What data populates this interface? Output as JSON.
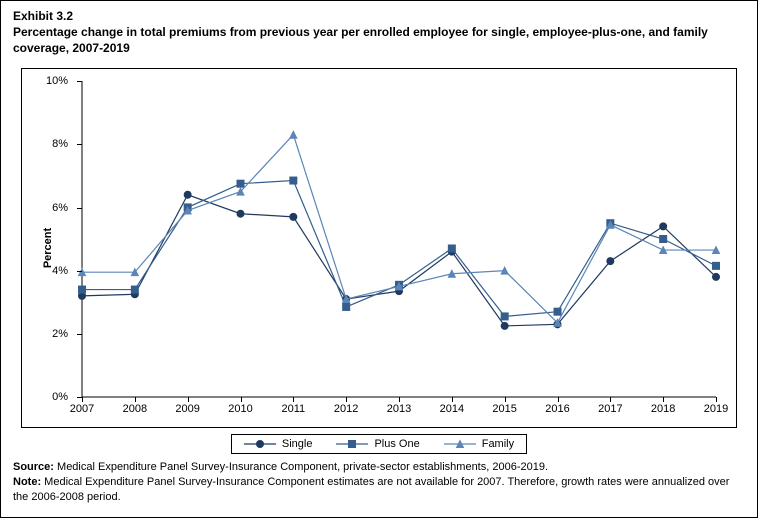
{
  "header": {
    "exhibit": "Exhibit 3.2",
    "title": "Percentage change in total premiums from previous year per enrolled employee for single, employee-plus-one, and family coverage, 2007-2019"
  },
  "chart": {
    "type": "line",
    "ylabel": "Percent",
    "ylim": [
      0,
      10
    ],
    "ytick_step": 2,
    "ytick_suffix": "%",
    "background_color": "#ffffff",
    "axis_color": "#000000",
    "years": [
      2007,
      2008,
      2009,
      2010,
      2011,
      2012,
      2013,
      2014,
      2015,
      2016,
      2017,
      2018,
      2019
    ],
    "series": [
      {
        "name": "Single",
        "color": "#1f3a5f",
        "marker": "circle",
        "line_width": 1.2,
        "values": [
          3.2,
          3.25,
          6.4,
          5.8,
          5.7,
          3.1,
          3.35,
          4.6,
          2.25,
          2.3,
          4.3,
          5.4,
          3.8
        ]
      },
      {
        "name": "Plus One",
        "color": "#355e8c",
        "marker": "square",
        "line_width": 1.2,
        "values": [
          3.4,
          3.4,
          6.0,
          6.75,
          6.85,
          2.85,
          3.55,
          4.7,
          2.55,
          2.7,
          5.5,
          5.0,
          4.15
        ]
      },
      {
        "name": "Family",
        "color": "#5b86b7",
        "marker": "triangle",
        "line_width": 1.2,
        "values": [
          3.95,
          3.95,
          5.9,
          6.5,
          8.3,
          3.1,
          3.5,
          3.9,
          4.0,
          2.35,
          5.45,
          4.65,
          4.65
        ]
      }
    ]
  },
  "legend": {
    "items": [
      "Single",
      "Plus One",
      "Family"
    ]
  },
  "footer": {
    "source_label": "Source:",
    "source_text": " Medical Expenditure Panel Survey-Insurance Component, private-sector establishments, 2006-2019.",
    "note_label": "Note:",
    "note_text": " Medical Expenditure Panel Survey-Insurance Component estimates are not available for 2007. Therefore, growth rates were annualized over the 2006-2008 period."
  }
}
